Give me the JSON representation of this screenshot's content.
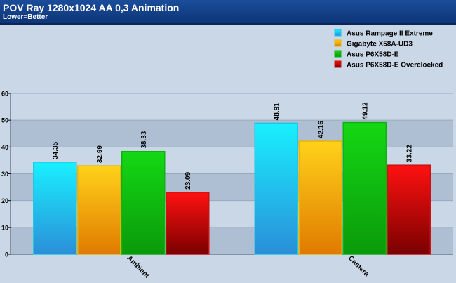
{
  "header": {
    "title": "POV Ray 1280x1024 AA 0,3 Animation",
    "subtitle": "Lower=Better"
  },
  "colors": {
    "header_top": "#1a4d9a",
    "header_bottom": "#0e3577",
    "plot_band_dark": "#aebfd3",
    "plot_band_light": "#c9d7e6"
  },
  "chart_data": {
    "type": "bar",
    "categories": [
      "Ambient",
      "Camera"
    ],
    "series": [
      {
        "name": "Asus Rampage II Extreme",
        "values": [
          34.35,
          48.91
        ],
        "color_top": "#19f0ff",
        "color_bottom": "#2a8fd8",
        "border": "#1fc6e6"
      },
      {
        "name": "Gigabyte X58A-UD3",
        "values": [
          32.99,
          42.16
        ],
        "color_top": "#ffd21a",
        "color_bottom": "#e07a00",
        "border": "#e8b400"
      },
      {
        "name": "Asus P6X58D-E",
        "values": [
          38.33,
          49.12
        ],
        "color_top": "#14d814",
        "color_bottom": "#0a9a0a",
        "border": "#12b012"
      },
      {
        "name": "Asus P6X58D-E Overclocked",
        "values": [
          23.09,
          33.22
        ],
        "color_top": "#ff1111",
        "color_bottom": "#7a0000",
        "border": "#cc1111"
      }
    ],
    "data_labels": [
      [
        "34.35",
        "48.91"
      ],
      [
        "32.99",
        "42.16"
      ],
      [
        "38.33",
        "49.12"
      ],
      [
        "23.09",
        "33.22"
      ]
    ],
    "yticks": [
      0,
      10,
      20,
      30,
      40,
      50,
      60
    ],
    "ylim": [
      0,
      60
    ],
    "grid": true,
    "legend_position": "top-right"
  }
}
